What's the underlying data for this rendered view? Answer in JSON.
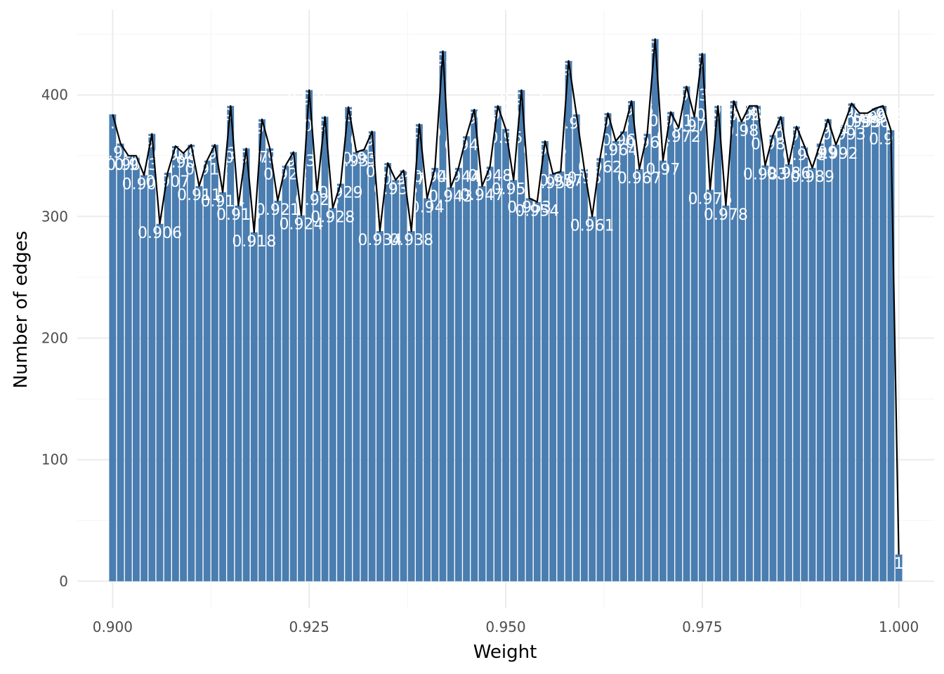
{
  "chart_data": {
    "type": "bar",
    "xlabel": "Weight",
    "ylabel": "Number of edges",
    "xlim": [
      0.8955,
      1.0045
    ],
    "ylim": [
      -22,
      470
    ],
    "x_ticks": [
      "0.900",
      "0.925",
      "0.950",
      "0.975",
      "1.000"
    ],
    "y_ticks": [
      "0",
      "100",
      "200",
      "300",
      "400"
    ],
    "grid": true,
    "bar_color": "#4a7db0",
    "line_color": "#000000",
    "x": [
      0.9,
      0.901,
      0.902,
      0.903,
      0.904,
      0.905,
      0.906,
      0.907,
      0.908,
      0.909,
      0.91,
      0.911,
      0.912,
      0.913,
      0.914,
      0.915,
      0.916,
      0.917,
      0.918,
      0.919,
      0.92,
      0.921,
      0.922,
      0.923,
      0.924,
      0.925,
      0.926,
      0.927,
      0.928,
      0.929,
      0.93,
      0.931,
      0.932,
      0.933,
      0.934,
      0.935,
      0.936,
      0.937,
      0.938,
      0.939,
      0.94,
      0.941,
      0.942,
      0.943,
      0.944,
      0.945,
      0.946,
      0.947,
      0.948,
      0.949,
      0.95,
      0.951,
      0.952,
      0.953,
      0.954,
      0.955,
      0.956,
      0.957,
      0.958,
      0.959,
      0.96,
      0.961,
      0.962,
      0.963,
      0.964,
      0.965,
      0.966,
      0.967,
      0.968,
      0.969,
      0.97,
      0.971,
      0.972,
      0.973,
      0.974,
      0.975,
      0.976,
      0.977,
      0.978,
      0.979,
      0.98,
      0.981,
      0.982,
      0.983,
      0.984,
      0.985,
      0.986,
      0.987,
      0.988,
      0.989,
      0.99,
      0.991,
      0.992,
      0.993,
      0.994,
      0.995,
      0.996,
      0.997,
      0.998,
      0.999,
      1.0
    ],
    "values": [
      384,
      360,
      350,
      350,
      334,
      368,
      294,
      336,
      358,
      352,
      359,
      325,
      346,
      359,
      320,
      391,
      309,
      356,
      287,
      380,
      356,
      313,
      342,
      353,
      301,
      404,
      321,
      382,
      307,
      327,
      390,
      353,
      355,
      370,
      288,
      344,
      330,
      338,
      288,
      376,
      315,
      340,
      436,
      324,
      340,
      366,
      388,
      325,
      341,
      391,
      372,
      330,
      404,
      315,
      312,
      362,
      335,
      337,
      428,
      384,
      339,
      300,
      348,
      385,
      362,
      370,
      395,
      339,
      368,
      446,
      346,
      386,
      373,
      407,
      382,
      434,
      322,
      391,
      309,
      395,
      378,
      391,
      391,
      342,
      367,
      382,
      343,
      374,
      358,
      340,
      360,
      380,
      359,
      375,
      393,
      385,
      385,
      389,
      391,
      371,
      22
    ],
    "labels": [
      "0.9",
      "0.901",
      "0.902",
      "0.903",
      "0.904",
      "0.905",
      "0.906",
      "0.907",
      "0.908",
      "0.909",
      "0.91",
      "0.911",
      "0.912",
      "0.913",
      "0.914",
      "0.915",
      "0.916",
      "0.917",
      "0.918",
      "0.919",
      "0.92",
      "0.921",
      "0.922",
      "0.923",
      "0.924",
      "0.925",
      "0.926",
      "0.927",
      "0.928",
      "0.929",
      "0.93",
      "0.931",
      "0.932",
      "0.933",
      "0.934",
      "0.935",
      "0.936",
      "0.937",
      "0.938",
      "0.939",
      "0.94",
      "0.941",
      "0.942",
      "0.943",
      "0.944",
      "0.945",
      "0.946",
      "0.947",
      "0.948",
      "0.949",
      "0.95",
      "0.951",
      "0.952",
      "0.953",
      "0.954",
      "0.955",
      "0.956",
      "0.957",
      "0.958",
      "0.959",
      "0.96",
      "0.961",
      "0.962",
      "0.963",
      "0.964",
      "0.965",
      "0.966",
      "0.967",
      "0.968",
      "0.969",
      "0.97",
      "0.971",
      "0.972",
      "0.973",
      "0.974",
      "0.975",
      "0.976",
      "0.977",
      "0.978",
      "0.979",
      "0.98",
      "0.981",
      "0.982",
      "0.983",
      "0.984",
      "0.985",
      "0.986",
      "0.987",
      "0.988",
      "0.989",
      "0.99",
      "0.991",
      "0.992",
      "0.993",
      "0.994",
      "0.995",
      "0.996",
      "0.997",
      "0.998",
      "0.999",
      "1"
    ]
  }
}
